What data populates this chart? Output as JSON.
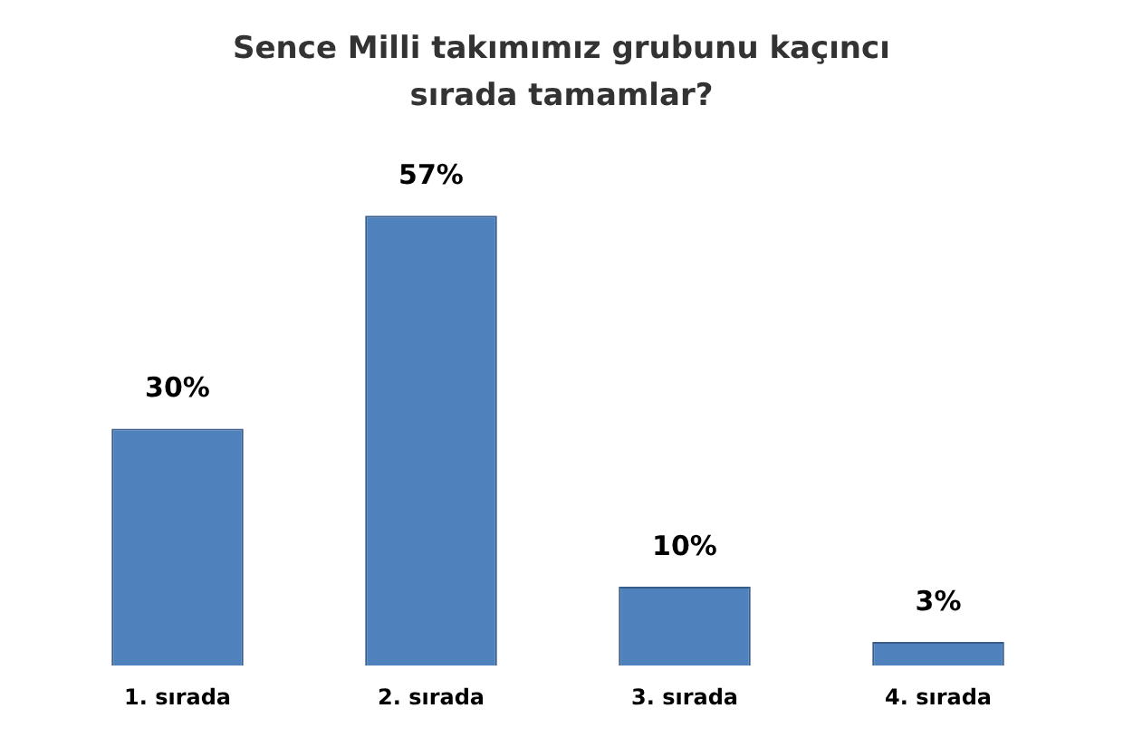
{
  "chart_data": {
    "type": "bar",
    "title": "Sence Milli takımımız grubunu kaçıncı sırada tamamlar?",
    "categories": [
      "1. sırada",
      "2. sırada",
      "3. sırada",
      "4. sırada"
    ],
    "values": [
      30,
      57,
      10,
      3
    ],
    "value_labels": [
      "30%",
      "57%",
      "10%",
      "3%"
    ],
    "color": "#4f81bd"
  }
}
